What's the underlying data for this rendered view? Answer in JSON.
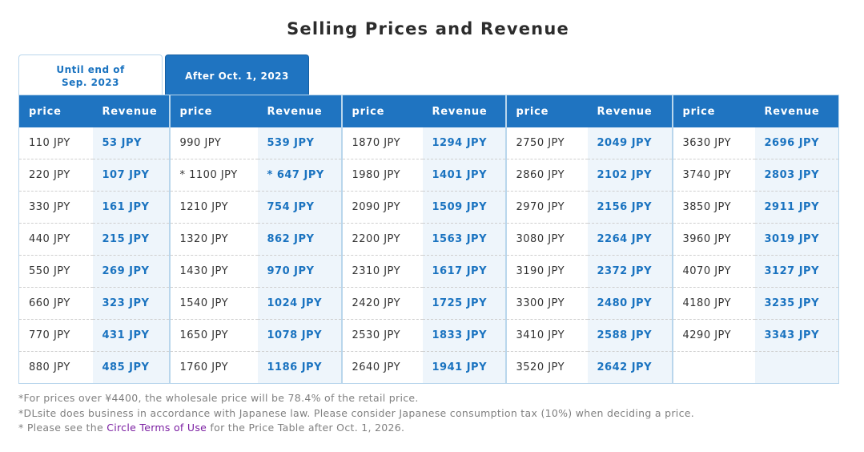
{
  "title": "Selling Prices and Revenue",
  "tabs": {
    "old_line1": "Until end of",
    "old_line2": "Sep. 2023",
    "new": "After Oct. 1, 2023"
  },
  "table": {
    "price_header": "price",
    "revenue_header": "Revenue",
    "columns": [
      {
        "prices": [
          "110 JPY",
          "220 JPY",
          "330 JPY",
          "440 JPY",
          "550 JPY",
          "660 JPY",
          "770 JPY",
          "880 JPY"
        ],
        "revenues": [
          "53 JPY",
          "107 JPY",
          "161 JPY",
          "215 JPY",
          "269 JPY",
          "323 JPY",
          "431 JPY",
          "485 JPY"
        ]
      },
      {
        "prices": [
          "990 JPY",
          "* 1100 JPY",
          "1210 JPY",
          "1320 JPY",
          "1430 JPY",
          "1540 JPY",
          "1650 JPY",
          "1760 JPY"
        ],
        "revenues": [
          "539 JPY",
          "* 647 JPY",
          "754 JPY",
          "862 JPY",
          "970 JPY",
          "1024 JPY",
          "1078 JPY",
          "1186 JPY"
        ]
      },
      {
        "prices": [
          "1870 JPY",
          "1980 JPY",
          "2090 JPY",
          "2200 JPY",
          "2310 JPY",
          "2420 JPY",
          "2530 JPY",
          "2640 JPY"
        ],
        "revenues": [
          "1294 JPY",
          "1401 JPY",
          "1509 JPY",
          "1563 JPY",
          "1617 JPY",
          "1725 JPY",
          "1833 JPY",
          "1941 JPY"
        ]
      },
      {
        "prices": [
          "2750 JPY",
          "2860 JPY",
          "2970 JPY",
          "3080 JPY",
          "3190 JPY",
          "3300 JPY",
          "3410 JPY",
          "3520 JPY"
        ],
        "revenues": [
          "2049 JPY",
          "2102 JPY",
          "2156 JPY",
          "2264 JPY",
          "2372 JPY",
          "2480 JPY",
          "2588 JPY",
          "2642 JPY"
        ]
      },
      {
        "prices": [
          "3630 JPY",
          "3740 JPY",
          "3850 JPY",
          "3960 JPY",
          "4070 JPY",
          "4180 JPY",
          "4290 JPY",
          ""
        ],
        "revenues": [
          "2696 JPY",
          "2803 JPY",
          "2911 JPY",
          "3019 JPY",
          "3127 JPY",
          "3235 JPY",
          "3343 JPY",
          ""
        ]
      }
    ]
  },
  "notes": {
    "note1": "*For prices over ¥4400, the wholesale price will be 78.4% of the retail price.",
    "note2": "*DLsite does business in accordance with Japanese law. Please consider Japanese consumption tax (10%) when deciding a price.",
    "note3_before": "* Please see the ",
    "note3_link": "Circle Terms of Use",
    "note3_after": " for the Price Table after Oct. 1, 2026."
  }
}
